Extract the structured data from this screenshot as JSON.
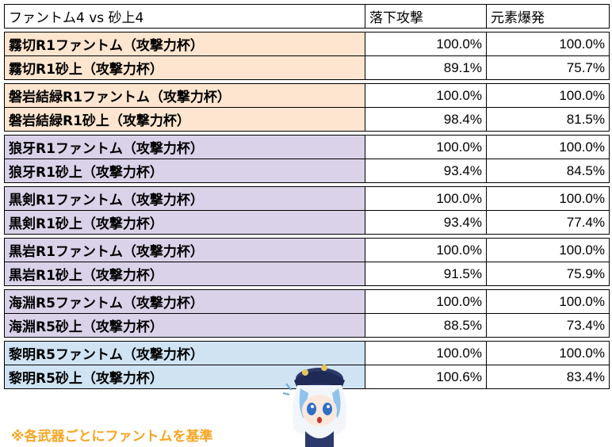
{
  "table": {
    "header": {
      "title": "ファントム4 vs 砂上4",
      "col1": "落下攻撃",
      "col2": "元素爆発"
    },
    "groups": [
      {
        "color": "orange",
        "rows": [
          {
            "name": "霧切R1ファントム（攻撃力杯）",
            "plunge": "100.0%",
            "burst": "100.0%"
          },
          {
            "name": "霧切R1砂上（攻撃力杯）",
            "plunge": "89.1%",
            "burst": "75.7%"
          }
        ]
      },
      {
        "color": "orange",
        "rows": [
          {
            "name": "磐岩結緑R1ファントム（攻撃力杯）",
            "plunge": "100.0%",
            "burst": "100.0%"
          },
          {
            "name": "磐岩結緑R1砂上（攻撃力杯）",
            "plunge": "98.4%",
            "burst": "81.5%"
          }
        ]
      },
      {
        "color": "purple",
        "rows": [
          {
            "name": "狼牙R1ファントム（攻撃力杯）",
            "plunge": "100.0%",
            "burst": "100.0%"
          },
          {
            "name": "狼牙R1砂上（攻撃力杯）",
            "plunge": "93.4%",
            "burst": "84.5%"
          }
        ]
      },
      {
        "color": "purple",
        "rows": [
          {
            "name": "黒剣R1ファントム（攻撃力杯）",
            "plunge": "100.0%",
            "burst": "100.0%"
          },
          {
            "name": "黒剣R1砂上（攻撃力杯）",
            "plunge": "93.4%",
            "burst": "77.4%"
          }
        ]
      },
      {
        "color": "purple",
        "rows": [
          {
            "name": "黒岩R1ファントム（攻撃力杯）",
            "plunge": "100.0%",
            "burst": "100.0%"
          },
          {
            "name": "黒岩R1砂上（攻撃力杯）",
            "plunge": "91.5%",
            "burst": "75.9%"
          }
        ]
      },
      {
        "color": "purple",
        "rows": [
          {
            "name": "海淵R5ファントム（攻撃力杯）",
            "plunge": "100.0%",
            "burst": "100.0%"
          },
          {
            "name": "海淵R5砂上（攻撃力杯）",
            "plunge": "88.5%",
            "burst": "73.4%"
          }
        ]
      },
      {
        "color": "blue",
        "rows": [
          {
            "name": "黎明R5ファントム（攻撃力杯）",
            "plunge": "100.0%",
            "burst": "100.0%"
          },
          {
            "name": "黎明R5砂上（攻撃力杯）",
            "plunge": "100.6%",
            "burst": "83.4%"
          }
        ]
      }
    ]
  },
  "note": "※各武器ごとにファントムを基準",
  "mascot_icon": "chibi-character-icon",
  "colors": {
    "orange": "#fde5cf",
    "purple": "#dad2e9",
    "blue": "#cfe3f3",
    "note": "#f5a623"
  }
}
